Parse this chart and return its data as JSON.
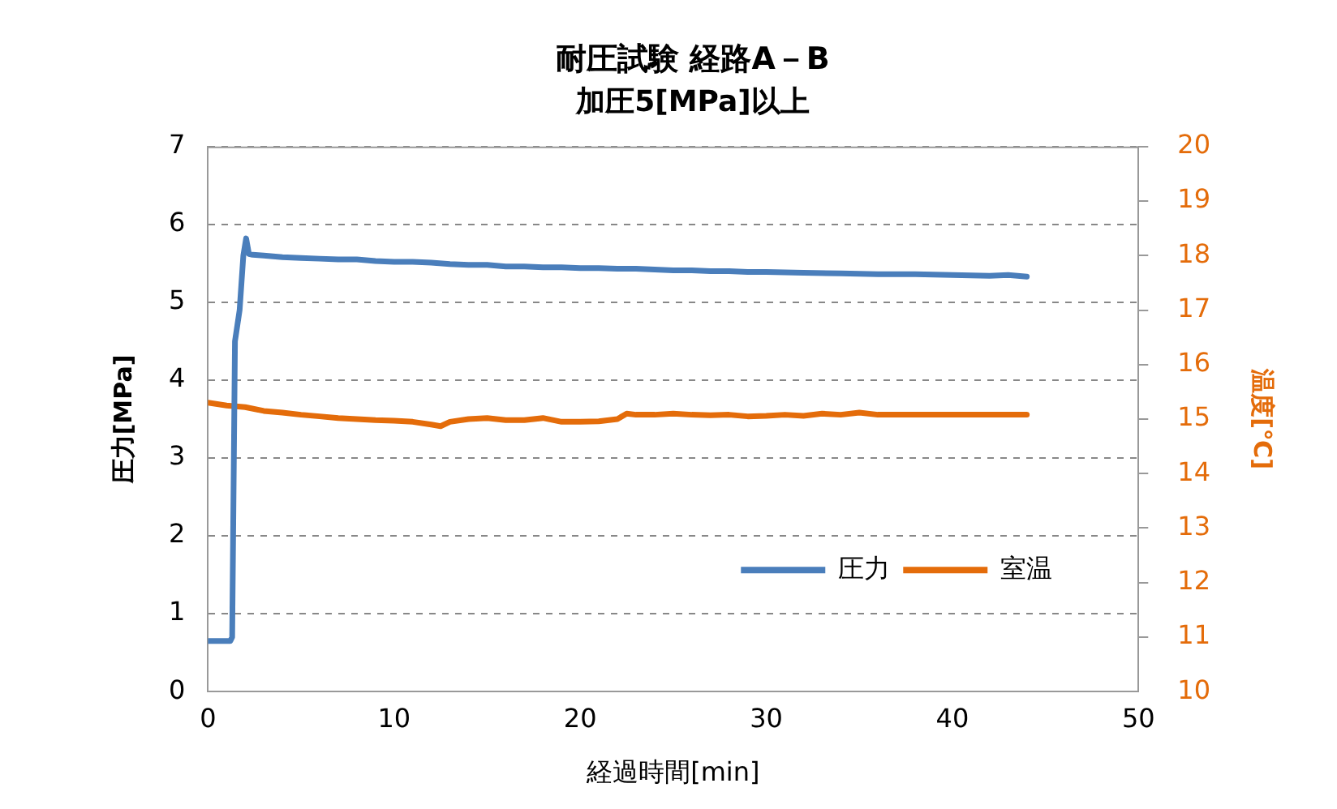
{
  "chart_data": {
    "type": "line",
    "title": "耐圧試験 経路A－B",
    "subtitle": "加圧5[MPa]以上",
    "xlabel": "経過時間[min]",
    "ylabel": "圧力[MPa]",
    "y2label": "温度[℃]",
    "xlim": [
      0,
      50
    ],
    "xticks": [
      0,
      10,
      20,
      30,
      40,
      50
    ],
    "ylim": [
      0,
      7
    ],
    "yticks": [
      0,
      1,
      2,
      3,
      4,
      5,
      6,
      7
    ],
    "y2lim": [
      10,
      20
    ],
    "y2ticks": [
      10,
      11,
      12,
      13,
      14,
      15,
      16,
      17,
      18,
      19,
      20
    ],
    "grid": "y",
    "legend": "bottom right",
    "marker": "none",
    "line_style": "solid",
    "series": [
      {
        "name": "圧力",
        "color": "#4a7ebb",
        "x": [
          0,
          1.2,
          1.3,
          1.45,
          1.7,
          1.9,
          2.05,
          2.2,
          2.4,
          3,
          4,
          5,
          6,
          7,
          8,
          9,
          10,
          11,
          12,
          13,
          14,
          15,
          16,
          17,
          18,
          19,
          20,
          21,
          22,
          23,
          24,
          25,
          26,
          27,
          28,
          29,
          30,
          32,
          34,
          36,
          38,
          40,
          42,
          43,
          44
        ],
        "values": [
          0.65,
          0.65,
          0.7,
          4.5,
          4.9,
          5.6,
          5.82,
          5.62,
          5.61,
          5.6,
          5.58,
          5.57,
          5.56,
          5.55,
          5.55,
          5.53,
          5.52,
          5.52,
          5.51,
          5.49,
          5.48,
          5.48,
          5.46,
          5.46,
          5.45,
          5.45,
          5.44,
          5.44,
          5.43,
          5.43,
          5.42,
          5.41,
          5.41,
          5.4,
          5.4,
          5.39,
          5.39,
          5.38,
          5.37,
          5.36,
          5.36,
          5.35,
          5.34,
          5.35,
          5.33
        ]
      },
      {
        "name": "室温",
        "color": "#e46c0a",
        "axis": "y2",
        "x": [
          0,
          1,
          2,
          3,
          4,
          5,
          6,
          7,
          8,
          9,
          10,
          11,
          12,
          12.5,
          13,
          14,
          15,
          16,
          17,
          18,
          19,
          20,
          21,
          22,
          22.5,
          23,
          24,
          25,
          26,
          27,
          28,
          29,
          30,
          31,
          32,
          33,
          34,
          35,
          36,
          38,
          40,
          42,
          44
        ],
        "values": [
          15.3,
          15.25,
          15.22,
          15.15,
          15.12,
          15.08,
          15.05,
          15.02,
          15.0,
          14.98,
          14.97,
          14.95,
          14.9,
          14.87,
          14.95,
          15.0,
          15.02,
          14.98,
          14.98,
          15.02,
          14.95,
          14.95,
          14.96,
          15.0,
          15.1,
          15.08,
          15.08,
          15.1,
          15.08,
          15.07,
          15.08,
          15.05,
          15.06,
          15.08,
          15.06,
          15.1,
          15.08,
          15.12,
          15.08,
          15.08,
          15.08,
          15.08,
          15.08
        ]
      }
    ]
  }
}
